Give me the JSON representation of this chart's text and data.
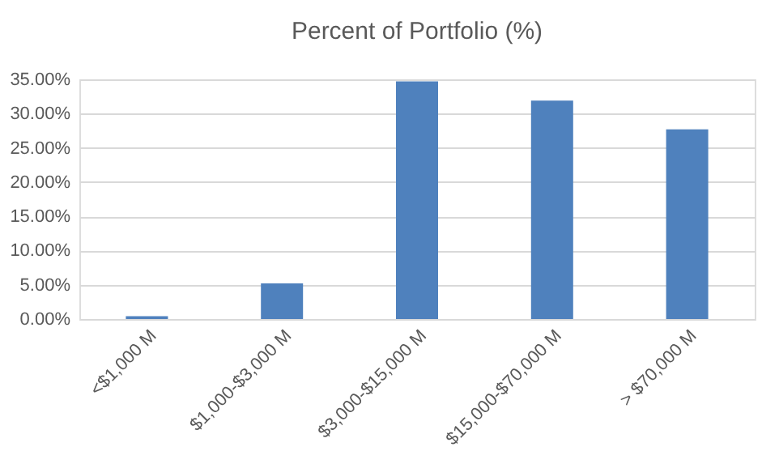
{
  "chart_data": {
    "type": "bar",
    "title": "Percent of Portfolio (%)",
    "categories": [
      "<$1,000 M",
      "$1,000-$3,000 M",
      "$3,000-$15,000 M",
      "$15,000-$70,000 M",
      "> $70,000 M"
    ],
    "values": [
      0.4,
      5.2,
      34.7,
      31.9,
      27.7
    ],
    "color": "#4f81bd",
    "ylim": [
      0,
      35
    ],
    "yticks": [
      {
        "value": 0,
        "label": "0.00%"
      },
      {
        "value": 5,
        "label": "5.00%"
      },
      {
        "value": 10,
        "label": "10.00%"
      },
      {
        "value": 15,
        "label": "15.00%"
      },
      {
        "value": 20,
        "label": "20.00%"
      },
      {
        "value": 25,
        "label": "25.00%"
      },
      {
        "value": 30,
        "label": "30.00%"
      },
      {
        "value": 35,
        "label": "35.00%"
      }
    ],
    "grid": "y"
  }
}
